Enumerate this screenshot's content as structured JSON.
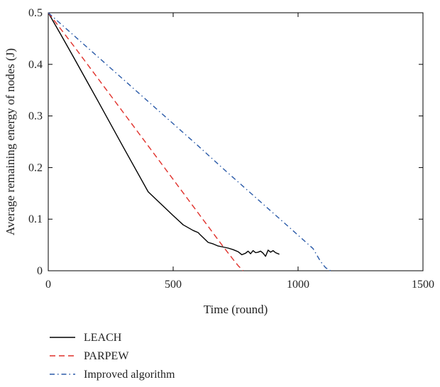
{
  "chart_data": {
    "type": "line",
    "title": "",
    "xlabel": "Time (round)",
    "ylabel": "Average remaining energy of nodes (J)",
    "xlim": [
      0,
      1500
    ],
    "ylim": [
      0,
      0.5
    ],
    "xticks": [
      0,
      500,
      1000,
      1500
    ],
    "yticks": [
      0,
      0.1,
      0.2,
      0.3,
      0.4,
      0.5
    ],
    "grid": false,
    "legend_position": "below",
    "series": [
      {
        "name": "LEACH",
        "color": "#000000",
        "style": "solid",
        "x": [
          0,
          50,
          100,
          200,
          300,
          400,
          500,
          540,
          580,
          600,
          610,
          625,
          640,
          660,
          680,
          700,
          720,
          740,
          760,
          775,
          790,
          800,
          810,
          820,
          830,
          840,
          850,
          860,
          870,
          880,
          890,
          900,
          910,
          925
        ],
        "y": [
          0.5,
          0.458,
          0.415,
          0.328,
          0.24,
          0.153,
          0.107,
          0.089,
          0.078,
          0.074,
          0.069,
          0.062,
          0.055,
          0.052,
          0.048,
          0.046,
          0.044,
          0.041,
          0.037,
          0.031,
          0.034,
          0.038,
          0.033,
          0.039,
          0.035,
          0.036,
          0.038,
          0.034,
          0.028,
          0.04,
          0.036,
          0.039,
          0.035,
          0.032
        ]
      },
      {
        "name": "PARPEW",
        "color": "#e0302a",
        "style": "dashed",
        "x": [
          0,
          100,
          200,
          300,
          400,
          500,
          600,
          700,
          740,
          760,
          780
        ],
        "y": [
          0.5,
          0.437,
          0.372,
          0.307,
          0.242,
          0.177,
          0.112,
          0.047,
          0.022,
          0.01,
          0
        ]
      },
      {
        "name": "Improved algorithm",
        "color": "#2a5aa8",
        "style": "dashdot",
        "x": [
          0,
          100,
          200,
          300,
          400,
          500,
          600,
          700,
          800,
          900,
          1000,
          1060,
          1090,
          1110,
          1130
        ],
        "y": [
          0.5,
          0.457,
          0.414,
          0.371,
          0.328,
          0.285,
          0.242,
          0.198,
          0.155,
          0.112,
          0.069,
          0.043,
          0.018,
          0.006,
          0
        ]
      }
    ]
  }
}
